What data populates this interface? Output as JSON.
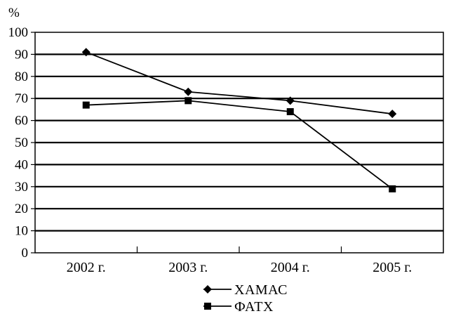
{
  "chart_data": {
    "type": "line",
    "ylabel": "%",
    "xlabel": "",
    "ylim": [
      0,
      100
    ],
    "yticks": [
      0,
      10,
      20,
      30,
      40,
      50,
      60,
      70,
      80,
      90,
      100
    ],
    "categories": [
      "2002 г.",
      "2003 г.",
      "2004 г.",
      "2005 г."
    ],
    "grid": "horizontal",
    "legend_position": "bottom",
    "series": [
      {
        "name": "ХАМАС",
        "marker": "diamond",
        "values": [
          91,
          73,
          69,
          63
        ]
      },
      {
        "name": "ФАТХ",
        "marker": "square",
        "values": [
          67,
          69,
          64,
          29
        ]
      }
    ],
    "colors": {
      "line": "#000000",
      "grid": "#000000",
      "background": "#ffffff"
    }
  }
}
